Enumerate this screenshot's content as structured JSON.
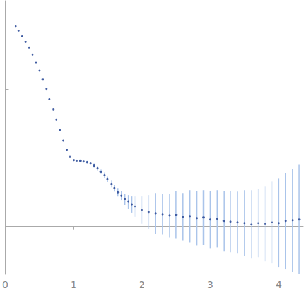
{
  "chart_data": {
    "type": "scatter",
    "color": "#1f3f8f",
    "marker": "circle",
    "x": [
      0.15,
      0.2,
      0.25,
      0.3,
      0.35,
      0.4,
      0.45,
      0.5,
      0.55,
      0.6,
      0.65,
      0.7,
      0.75,
      0.8,
      0.85,
      0.9,
      0.95,
      1.0,
      1.05,
      1.1,
      1.15,
      1.2,
      1.25,
      1.3,
      1.35,
      1.4,
      1.45,
      1.5,
      1.55,
      1.6,
      1.65,
      1.7,
      1.75,
      1.8,
      1.85,
      1.9,
      2.0,
      2.1,
      2.2,
      2.3,
      2.4,
      2.5,
      2.6,
      2.7,
      2.8,
      2.9,
      3.0,
      3.1,
      3.2,
      3.3,
      3.4,
      3.5,
      3.6,
      3.7,
      3.8,
      3.9,
      4.0,
      4.1,
      4.2,
      4.3
    ],
    "values": [
      2.93,
      2.86,
      2.78,
      2.7,
      2.61,
      2.51,
      2.4,
      2.28,
      2.15,
      2.01,
      1.86,
      1.71,
      1.56,
      1.41,
      1.26,
      1.12,
      1.02,
      0.97,
      0.96,
      0.96,
      0.95,
      0.94,
      0.92,
      0.89,
      0.85,
      0.8,
      0.75,
      0.69,
      0.62,
      0.56,
      0.5,
      0.45,
      0.4,
      0.36,
      0.32,
      0.29,
      0.24,
      0.21,
      0.19,
      0.18,
      0.16,
      0.17,
      0.14,
      0.15,
      0.12,
      0.13,
      0.1,
      0.11,
      0.08,
      0.07,
      0.06,
      0.05,
      0.03,
      0.05,
      0.04,
      0.06,
      0.05,
      0.08,
      0.09,
      0.1
    ],
    "errors": [
      0.01,
      0.01,
      0.01,
      0.01,
      0.01,
      0.01,
      0.01,
      0.01,
      0.01,
      0.01,
      0.01,
      0.01,
      0.01,
      0.01,
      0.01,
      0.01,
      0.01,
      0.01,
      0.02,
      0.02,
      0.02,
      0.02,
      0.02,
      0.03,
      0.03,
      0.03,
      0.04,
      0.04,
      0.05,
      0.05,
      0.06,
      0.07,
      0.08,
      0.1,
      0.12,
      0.15,
      0.2,
      0.25,
      0.3,
      0.3,
      0.32,
      0.35,
      0.35,
      0.38,
      0.4,
      0.4,
      0.42,
      0.42,
      0.44,
      0.45,
      0.45,
      0.48,
      0.5,
      0.5,
      0.55,
      0.6,
      0.65,
      0.7,
      0.75,
      0.8
    ],
    "xlim": [
      0,
      4.36
    ],
    "ylim": [
      -0.7,
      3.3
    ],
    "xticks": [
      0,
      1,
      2,
      3,
      4
    ],
    "yticks": [
      0,
      1,
      2,
      3
    ],
    "tick_labels": "x",
    "grid": false
  }
}
